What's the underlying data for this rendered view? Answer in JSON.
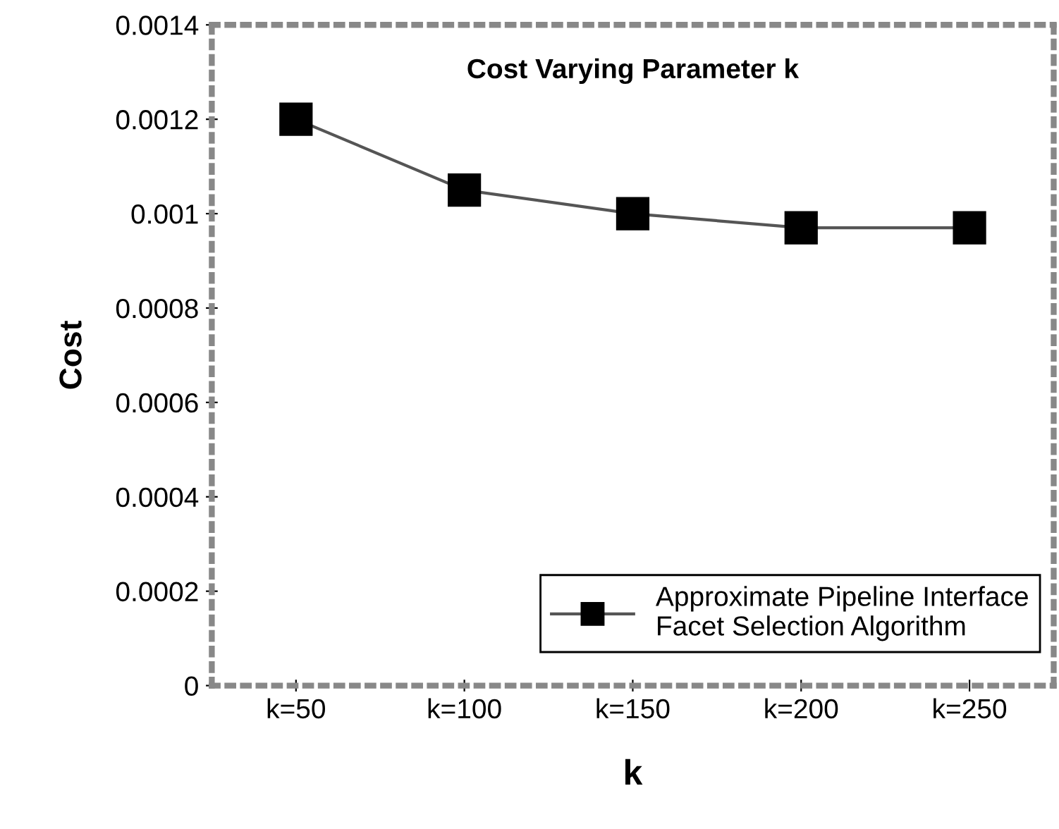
{
  "chart_data": {
    "type": "line",
    "title": "Cost Varying Parameter k",
    "xlabel": "k",
    "ylabel": "Cost",
    "categories": [
      "k=50",
      "k=100",
      "k=150",
      "k=200",
      "k=250"
    ],
    "series": [
      {
        "name": "Approximate Pipeline Interface\nFacet Selection Algorithm",
        "color": "#000000",
        "values": [
          0.0012,
          0.00105,
          0.001,
          0.00097,
          0.00097
        ]
      }
    ],
    "ylim": [
      0,
      0.0014
    ],
    "yticks": [
      0,
      0.0002,
      0.0004,
      0.0006,
      0.0008,
      0.001,
      0.0012,
      0.0014
    ],
    "marker": "square",
    "line_style": "solid",
    "grid": false,
    "legend": "bottom right"
  }
}
